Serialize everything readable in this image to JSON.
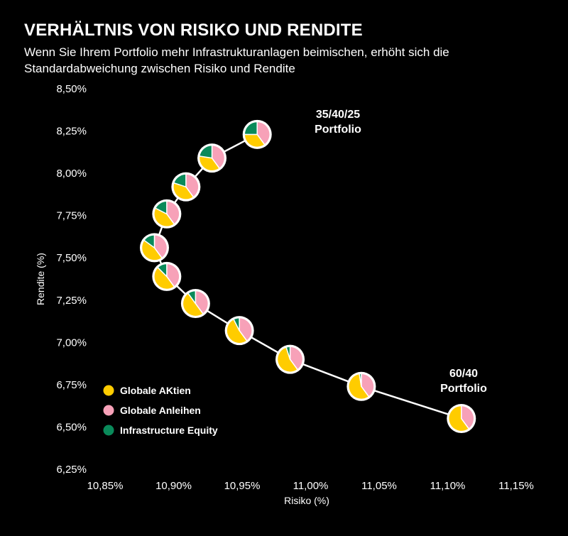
{
  "title": "VERHÄLTNIS VON RISIKO UND RENDITE",
  "subtitle": "Wenn Sie Ihrem Portfolio mehr Infrastrukturanlagen beimischen, erhöht sich die Standardabweichung zwischen Risiko und Rendite",
  "chart_data": {
    "type": "scatter",
    "marker": "pie",
    "xlabel": "Risiko (%)",
    "ylabel": "Rendite (%)",
    "xlim": [
      10.85,
      11.15
    ],
    "ylim": [
      6.25,
      8.5
    ],
    "xticks": [
      10.85,
      10.9,
      10.95,
      11.0,
      11.05,
      11.1,
      11.15
    ],
    "xtick_labels": [
      "10,85%",
      "10,90%",
      "10,95%",
      "11,00%",
      "11,05%",
      "11,10%",
      "11,15%"
    ],
    "yticks": [
      6.25,
      6.5,
      6.75,
      7.0,
      7.25,
      7.5,
      7.75,
      8.0,
      8.25,
      8.5
    ],
    "ytick_labels": [
      "6,25%",
      "6,50%",
      "6,75%",
      "7,00%",
      "7,25%",
      "7,50%",
      "7,75%",
      "8,00%",
      "8,25%",
      "8,50%"
    ],
    "grid": false,
    "legend_position": "bottom-left",
    "series": [
      {
        "name": "Globale AKtien",
        "color": "#FFCC00"
      },
      {
        "name": "Globale Anleihen",
        "color": "#F7A1B8"
      },
      {
        "name": "Infrastructure Equity",
        "color": "#0A8A5A"
      }
    ],
    "points": [
      {
        "x": 11.11,
        "y": 6.55,
        "weights": [
          60,
          40,
          0
        ]
      },
      {
        "x": 11.037,
        "y": 6.74,
        "weights": [
          57.5,
          40,
          2.5
        ]
      },
      {
        "x": 10.985,
        "y": 6.9,
        "weights": [
          55,
          40,
          5
        ]
      },
      {
        "x": 10.948,
        "y": 7.07,
        "weights": [
          52.5,
          40,
          7.5
        ]
      },
      {
        "x": 10.916,
        "y": 7.23,
        "weights": [
          50,
          40,
          10
        ]
      },
      {
        "x": 10.895,
        "y": 7.39,
        "weights": [
          47.5,
          40,
          12.5
        ]
      },
      {
        "x": 10.886,
        "y": 7.56,
        "weights": [
          45,
          40,
          15
        ]
      },
      {
        "x": 10.895,
        "y": 7.76,
        "weights": [
          42.5,
          40,
          17.5
        ]
      },
      {
        "x": 10.909,
        "y": 7.92,
        "weights": [
          40,
          40,
          20
        ]
      },
      {
        "x": 10.928,
        "y": 8.09,
        "weights": [
          37.5,
          40,
          22.5
        ]
      },
      {
        "x": 10.961,
        "y": 8.23,
        "weights": [
          35,
          40,
          25
        ]
      }
    ],
    "annotations": [
      {
        "lines": [
          "35/40/25",
          "Portfolio"
        ],
        "point": 10
      },
      {
        "lines": [
          "60/40",
          "Portfolio"
        ],
        "point": 0
      }
    ]
  }
}
